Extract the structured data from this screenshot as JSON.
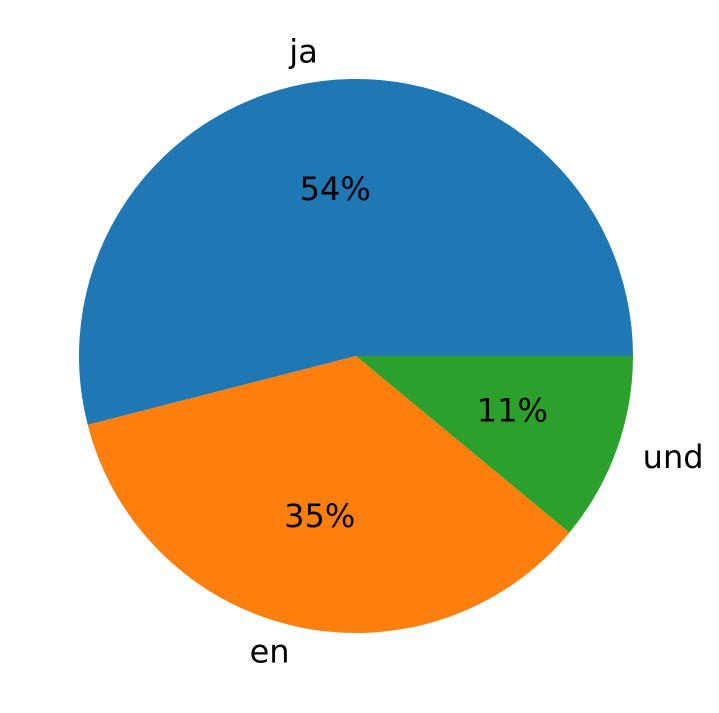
{
  "chart_data": {
    "type": "pie",
    "categories": [
      "ja",
      "en",
      "und"
    ],
    "values": [
      54,
      35,
      11
    ],
    "value_labels": [
      "54%",
      "35%",
      "11%"
    ],
    "colors": [
      "#1f77b4",
      "#ff7f0e",
      "#2ca02c"
    ]
  }
}
